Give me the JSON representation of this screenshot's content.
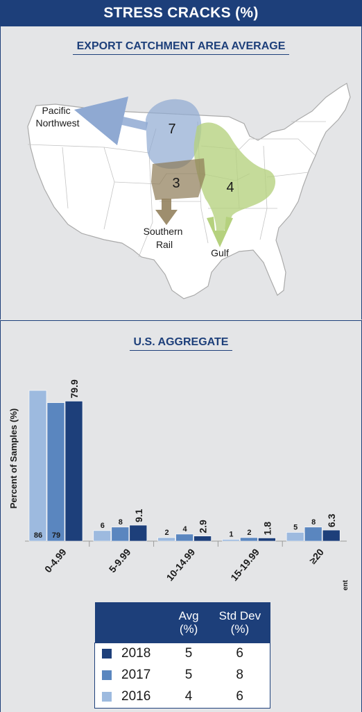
{
  "header": {
    "title": "STRESS CRACKS (%)"
  },
  "map": {
    "title": "EXPORT CATCHMENT AREA AVERAGE",
    "regions": [
      {
        "key": "pnw",
        "label": "Pacific Northwest",
        "label_lines": [
          "Pacific",
          "Northwest"
        ],
        "value": "7",
        "color": "#8fa9d2"
      },
      {
        "key": "rail",
        "label": "Southern Rail",
        "label_lines": [
          "Southern",
          "Rail"
        ],
        "value": "3",
        "color": "#8d7a55"
      },
      {
        "key": "gulf",
        "label": "Gulf",
        "label_lines": [
          "Gulf"
        ],
        "value": "4",
        "color": "#b5d17e"
      }
    ]
  },
  "chart": {
    "title": "U.S. AGGREGATE",
    "ylabel": "Percent of Samples (%)",
    "unit_label": "Percent"
  },
  "chart_data": {
    "type": "bar",
    "title": "U.S. AGGREGATE",
    "xlabel": "Percent",
    "ylabel": "Percent of Samples (%)",
    "categories": [
      "0-4.99",
      "5-9.99",
      "10-14.99",
      "15-19.99",
      "≥20"
    ],
    "series": [
      {
        "name": "2016",
        "values": [
          86,
          6,
          2,
          1,
          5
        ],
        "color": "#9dbadf"
      },
      {
        "name": "2017",
        "values": [
          79,
          8,
          4,
          2,
          8
        ],
        "color": "#5a86bf"
      },
      {
        "name": "2018",
        "values": [
          79.9,
          9.1,
          2.9,
          1.8,
          6.3
        ],
        "color": "#1d3f7a"
      }
    ],
    "ylim": [
      0,
      90
    ],
    "grid": false
  },
  "legend_table": {
    "headers": {
      "avg": "Avg (%)",
      "avg_lines": [
        "Avg",
        "(%)"
      ],
      "std": "Std Dev (%)",
      "std_lines": [
        "Std Dev",
        "(%)"
      ]
    },
    "rows": [
      {
        "year": "2018",
        "avg": "5",
        "std": "6",
        "color": "#1d3f7a"
      },
      {
        "year": "2017",
        "avg": "5",
        "std": "8",
        "color": "#5a86bf"
      },
      {
        "year": "2016",
        "avg": "4",
        "std": "6",
        "color": "#9dbadf"
      }
    ]
  }
}
